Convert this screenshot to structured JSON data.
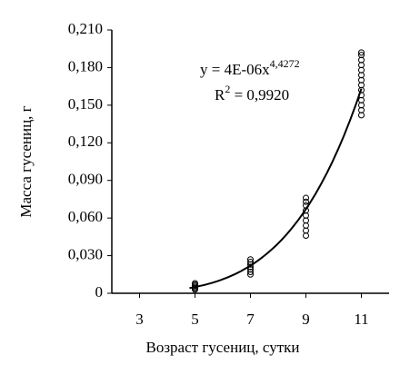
{
  "chart_data": {
    "type": "scatter",
    "x_label": "Возраст гусениц, сутки",
    "y_label": "Масса гусениц, г",
    "xlim": [
      2,
      12
    ],
    "xticks": [
      3,
      5,
      7,
      9,
      11
    ],
    "ylim": [
      0,
      0.21
    ],
    "yticks": [
      0,
      {
        "value": 0.03,
        "label": "0,030"
      },
      {
        "value": 0.06,
        "label": "0,060"
      },
      {
        "value": 0.09,
        "label": "0,090"
      },
      {
        "value": 0.12,
        "label": "0,120"
      },
      {
        "value": 0.15,
        "label": "0,150"
      },
      {
        "value": 0.18,
        "label": "0,180"
      },
      {
        "value": 0.21,
        "label": "0,210"
      }
    ],
    "color": "#000000",
    "x": [
      5,
      5,
      5,
      5,
      5,
      5,
      7,
      7,
      7,
      7,
      7,
      7,
      7,
      9,
      9,
      9,
      9,
      9,
      9,
      9,
      9,
      9,
      11,
      11,
      11,
      11,
      11,
      11,
      11,
      11,
      11,
      11,
      11,
      11,
      11,
      11
    ],
    "y": [
      0.003,
      0.004,
      0.005,
      0.006,
      0.007,
      0.008,
      0.015,
      0.017,
      0.019,
      0.021,
      0.023,
      0.025,
      0.027,
      0.046,
      0.05,
      0.054,
      0.058,
      0.062,
      0.066,
      0.07,
      0.073,
      0.076,
      0.142,
      0.146,
      0.15,
      0.154,
      0.158,
      0.162,
      0.166,
      0.17,
      0.174,
      0.178,
      0.182,
      0.186,
      0.19,
      0.192
    ],
    "trendline": {
      "kind": "power",
      "coefficient": 4e-06,
      "exponent": 4.4272,
      "x_range": [
        4.8,
        11
      ],
      "equation": "y = 4E-06x",
      "equation_power": "4,4272",
      "r2_label": "R",
      "r2_power": "2",
      "r2_value": " = 0,9920"
    }
  }
}
